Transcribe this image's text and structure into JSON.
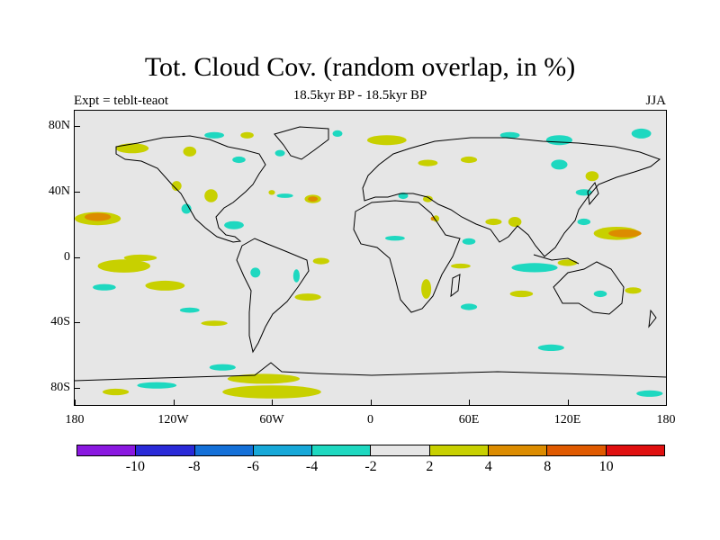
{
  "header": {
    "title": "Tot. Cloud Cov. (random overlap, in %)",
    "subtitle": "18.5kyr BP - 18.5kyr BP",
    "left_label": "Expt = teblt-teaot",
    "right_label": "JJA"
  },
  "axes": {
    "lat_ticks": [
      {
        "value": 80,
        "label": "80N"
      },
      {
        "value": 40,
        "label": "40N"
      },
      {
        "value": 0,
        "label": "0"
      },
      {
        "value": -40,
        "label": "40S"
      },
      {
        "value": -80,
        "label": "80S"
      }
    ],
    "lon_ticks": [
      {
        "value": -180,
        "label": "180"
      },
      {
        "value": -120,
        "label": "120W"
      },
      {
        "value": -60,
        "label": "60W"
      },
      {
        "value": 0,
        "label": "0"
      },
      {
        "value": 60,
        "label": "60E"
      },
      {
        "value": 120,
        "label": "120E"
      },
      {
        "value": 180,
        "label": "180"
      }
    ],
    "lon_range": [
      -180,
      180
    ],
    "lat_range": [
      -90,
      90
    ]
  },
  "colorbar": {
    "colors": [
      "#8a18e0",
      "#2a2ad8",
      "#1470d8",
      "#17a8d8",
      "#1ed8c0",
      "#e6e6e6",
      "#c8d000",
      "#dc8c00",
      "#e05a00",
      "#e01010"
    ],
    "labels": [
      "-10",
      "-8",
      "-6",
      "-4",
      "-2",
      "2",
      "4",
      "8",
      "10"
    ]
  },
  "map": {
    "background_color": "#e6e6e6",
    "anomaly_regions": [
      {
        "lon": -166,
        "lat": 24,
        "rx": 14,
        "ry": 4,
        "color": "#c8d000"
      },
      {
        "lon": -166,
        "lat": 25,
        "rx": 8,
        "ry": 2.5,
        "color": "#dc8c00"
      },
      {
        "lon": -150,
        "lat": -5,
        "rx": 16,
        "ry": 4,
        "color": "#c8d000"
      },
      {
        "lon": -140,
        "lat": 0,
        "rx": 10,
        "ry": 2,
        "color": "#c8d000"
      },
      {
        "lon": -125,
        "lat": -17,
        "rx": 12,
        "ry": 3,
        "color": "#c8d000"
      },
      {
        "lon": -162,
        "lat": -18,
        "rx": 7,
        "ry": 2,
        "color": "#1ed8c0"
      },
      {
        "lon": -110,
        "lat": -32,
        "rx": 6,
        "ry": 1.6,
        "color": "#1ed8c0"
      },
      {
        "lon": -95,
        "lat": -40,
        "rx": 8,
        "ry": 1.6,
        "color": "#c8d000"
      },
      {
        "lon": -70,
        "lat": -9,
        "rx": 3,
        "ry": 3,
        "color": "#1ed8c0"
      },
      {
        "lon": -45,
        "lat": -11,
        "rx": 2,
        "ry": 4,
        "color": "#1ed8c0"
      },
      {
        "lon": -38,
        "lat": -24,
        "rx": 8,
        "ry": 2.2,
        "color": "#c8d000"
      },
      {
        "lon": -30,
        "lat": -2,
        "rx": 5,
        "ry": 2,
        "color": "#c8d000"
      },
      {
        "lon": -97,
        "lat": 38,
        "rx": 4,
        "ry": 4,
        "color": "#c8d000"
      },
      {
        "lon": -118,
        "lat": 44,
        "rx": 3,
        "ry": 3,
        "color": "#c8d000"
      },
      {
        "lon": -83,
        "lat": 20,
        "rx": 6,
        "ry": 2.5,
        "color": "#1ed8c0"
      },
      {
        "lon": -112,
        "lat": 30,
        "rx": 3,
        "ry": 3,
        "color": "#1ed8c0"
      },
      {
        "lon": -60,
        "lat": 40,
        "rx": 2,
        "ry": 1.5,
        "color": "#c8d000"
      },
      {
        "lon": -35,
        "lat": 36,
        "rx": 5,
        "ry": 2.6,
        "color": "#c8d000"
      },
      {
        "lon": -35,
        "lat": 36,
        "rx": 3,
        "ry": 1.6,
        "color": "#dc8c00"
      },
      {
        "lon": -52,
        "lat": 38,
        "rx": 5,
        "ry": 1.3,
        "color": "#1ed8c0"
      },
      {
        "lon": -145,
        "lat": 67,
        "rx": 10,
        "ry": 3,
        "color": "#c8d000"
      },
      {
        "lon": -110,
        "lat": 65,
        "rx": 4,
        "ry": 3,
        "color": "#c8d000"
      },
      {
        "lon": -80,
        "lat": 60,
        "rx": 4,
        "ry": 2,
        "color": "#1ed8c0"
      },
      {
        "lon": -95,
        "lat": 75,
        "rx": 6,
        "ry": 2,
        "color": "#1ed8c0"
      },
      {
        "lon": -75,
        "lat": 75,
        "rx": 4,
        "ry": 2,
        "color": "#c8d000"
      },
      {
        "lon": -55,
        "lat": 64,
        "rx": 3,
        "ry": 2,
        "color": "#1ed8c0"
      },
      {
        "lon": -20,
        "lat": 76,
        "rx": 3,
        "ry": 2,
        "color": "#1ed8c0"
      },
      {
        "lon": 10,
        "lat": 72,
        "rx": 12,
        "ry": 3,
        "color": "#c8d000"
      },
      {
        "lon": 35,
        "lat": 58,
        "rx": 6,
        "ry": 2,
        "color": "#c8d000"
      },
      {
        "lon": 60,
        "lat": 60,
        "rx": 5,
        "ry": 2,
        "color": "#c8d000"
      },
      {
        "lon": 85,
        "lat": 75,
        "rx": 6,
        "ry": 2,
        "color": "#1ed8c0"
      },
      {
        "lon": 115,
        "lat": 72,
        "rx": 8,
        "ry": 3,
        "color": "#1ed8c0"
      },
      {
        "lon": 165,
        "lat": 76,
        "rx": 6,
        "ry": 3,
        "color": "#1ed8c0"
      },
      {
        "lon": 115,
        "lat": 57,
        "rx": 5,
        "ry": 3,
        "color": "#1ed8c0"
      },
      {
        "lon": 135,
        "lat": 50,
        "rx": 4,
        "ry": 3,
        "color": "#c8d000"
      },
      {
        "lon": 130,
        "lat": 40,
        "rx": 5,
        "ry": 2,
        "color": "#1ed8c0"
      },
      {
        "lon": 20,
        "lat": 38,
        "rx": 3,
        "ry": 2,
        "color": "#1ed8c0"
      },
      {
        "lon": 35,
        "lat": 36,
        "rx": 3,
        "ry": 2,
        "color": "#c8d000"
      },
      {
        "lon": 40,
        "lat": 24,
        "rx": 2,
        "ry": 2,
        "color": "#c8d000"
      },
      {
        "lon": 38,
        "lat": 24,
        "rx": 1.2,
        "ry": 1.2,
        "color": "#dc8c00"
      },
      {
        "lon": 75,
        "lat": 22,
        "rx": 5,
        "ry": 2,
        "color": "#c8d000"
      },
      {
        "lon": 88,
        "lat": 22,
        "rx": 4,
        "ry": 3,
        "color": "#c8d000"
      },
      {
        "lon": 60,
        "lat": 10,
        "rx": 4,
        "ry": 2,
        "color": "#1ed8c0"
      },
      {
        "lon": 15,
        "lat": 12,
        "rx": 6,
        "ry": 1.5,
        "color": "#1ed8c0"
      },
      {
        "lon": 55,
        "lat": -5,
        "rx": 6,
        "ry": 1.5,
        "color": "#c8d000"
      },
      {
        "lon": 100,
        "lat": -6,
        "rx": 14,
        "ry": 2.8,
        "color": "#1ed8c0"
      },
      {
        "lon": 120,
        "lat": -3,
        "rx": 6,
        "ry": 2,
        "color": "#c8d000"
      },
      {
        "lon": 150,
        "lat": 15,
        "rx": 14,
        "ry": 4,
        "color": "#c8d000"
      },
      {
        "lon": 155,
        "lat": 15,
        "rx": 10,
        "ry": 2.5,
        "color": "#dc8c00"
      },
      {
        "lon": 130,
        "lat": 22,
        "rx": 4,
        "ry": 2,
        "color": "#1ed8c0"
      },
      {
        "lon": 34,
        "lat": -19,
        "rx": 3,
        "ry": 6,
        "color": "#c8d000"
      },
      {
        "lon": 60,
        "lat": -30,
        "rx": 5,
        "ry": 2,
        "color": "#1ed8c0"
      },
      {
        "lon": 92,
        "lat": -22,
        "rx": 7,
        "ry": 2,
        "color": "#c8d000"
      },
      {
        "lon": 140,
        "lat": -22,
        "rx": 4,
        "ry": 2,
        "color": "#1ed8c0"
      },
      {
        "lon": 160,
        "lat": -20,
        "rx": 5,
        "ry": 2,
        "color": "#c8d000"
      },
      {
        "lon": 110,
        "lat": -55,
        "rx": 8,
        "ry": 2,
        "color": "#1ed8c0"
      },
      {
        "lon": -65,
        "lat": -74,
        "rx": 22,
        "ry": 3,
        "color": "#c8d000"
      },
      {
        "lon": -60,
        "lat": -82,
        "rx": 30,
        "ry": 4,
        "color": "#c8d000"
      },
      {
        "lon": -155,
        "lat": -82,
        "rx": 8,
        "ry": 2,
        "color": "#c8d000"
      },
      {
        "lon": -130,
        "lat": -78,
        "rx": 12,
        "ry": 2,
        "color": "#1ed8c0"
      },
      {
        "lon": -90,
        "lat": -67,
        "rx": 8,
        "ry": 2,
        "color": "#1ed8c0"
      },
      {
        "lon": 170,
        "lat": -83,
        "rx": 8,
        "ry": 2,
        "color": "#1ed8c0"
      }
    ]
  }
}
